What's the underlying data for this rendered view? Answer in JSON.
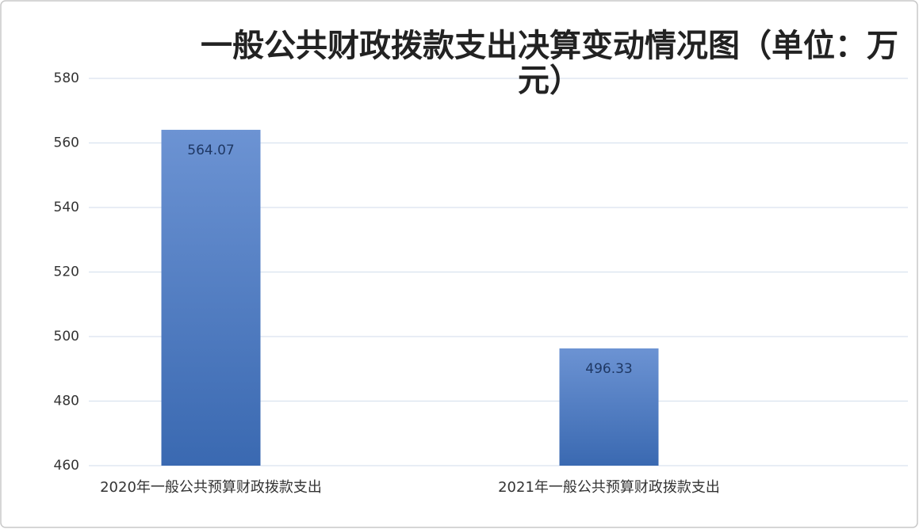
{
  "chart_data": {
    "type": "bar",
    "title": "一般公共财政拨款支出决算变动情况图（单位：万元）",
    "categories": [
      "2020年一般公共预算财政拨款支出",
      "2021年一般公共预算财政拨款支出"
    ],
    "values": [
      564.07,
      496.33
    ],
    "color": "#4f7fc6",
    "ylim": [
      460,
      580
    ],
    "yticks": [
      460,
      480,
      500,
      520,
      540,
      560,
      580
    ],
    "grid": true
  }
}
